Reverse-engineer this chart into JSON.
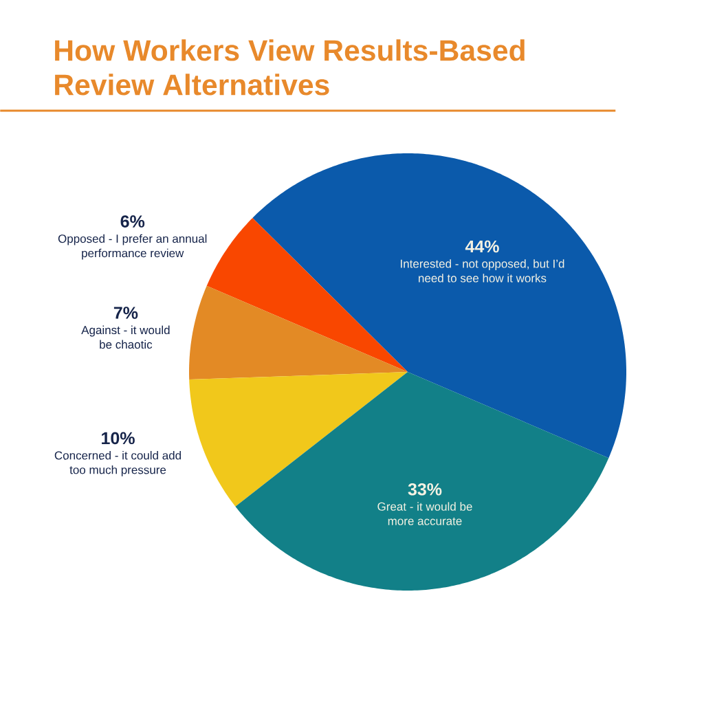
{
  "chart_data": {
    "type": "pie",
    "title": "How Workers View Results-Based Review Alternatives",
    "categories": [
      "Interested - not opposed, but I’d need to see how it works",
      "Opposed - I prefer an annual performance review",
      "Against - it would be chaotic",
      "Concerned - it could add too much pressure",
      "Great - it would be more accurate"
    ],
    "values": [
      44,
      6,
      7,
      10,
      33
    ],
    "value_labels": [
      "44%",
      "6%",
      "7%",
      "10%",
      "33%"
    ],
    "colors": [
      "#0b5aab",
      "#f94700",
      "#e38a25",
      "#f1c81b",
      "#128088"
    ]
  }
}
